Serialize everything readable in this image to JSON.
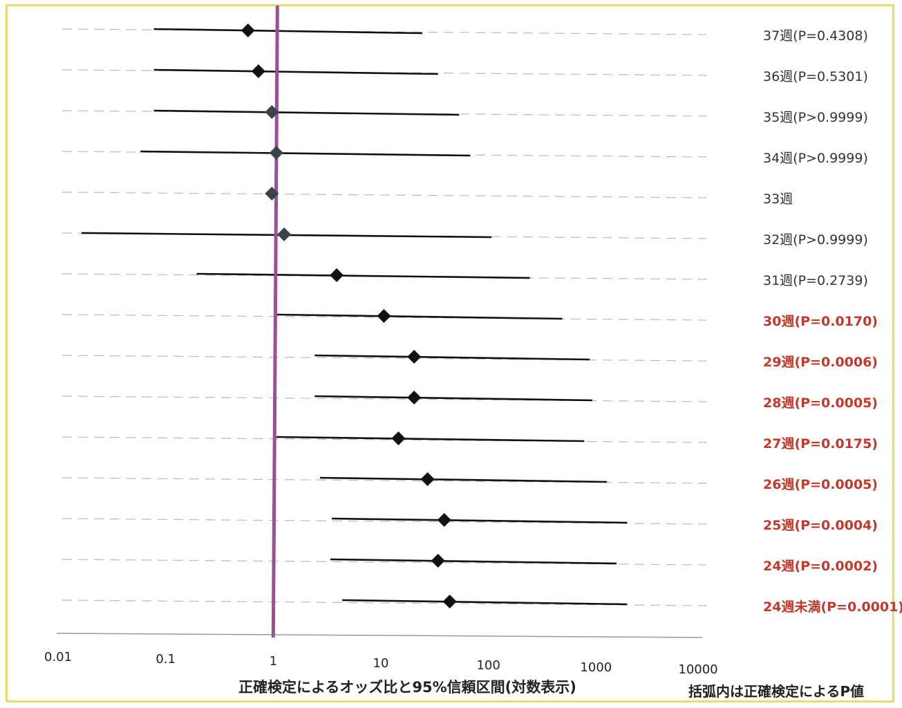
{
  "chart_data": {
    "type": "forest",
    "x_scale": "log",
    "xlim": [
      0.01,
      10000
    ],
    "x_ticks": [
      "0.01",
      "0.1",
      "1",
      "10",
      "100",
      "1000",
      "10000"
    ],
    "reference_line": 1,
    "xlabel": "正確検定によるオッズ比と95%信頼区間(対数表示)",
    "note": "括弧内は正確検定によるP値",
    "colors": {
      "reference_line": "#9b4f96",
      "significant": "#c0392b",
      "normal": "#333333",
      "frame": "#e8dc6a"
    },
    "rows": [
      {
        "label": "37週(P=0.4308)",
        "or": 0.6,
        "lower": 0.08,
        "upper": 25,
        "significant": false
      },
      {
        "label": "36週(P=0.5301)",
        "or": 0.75,
        "lower": 0.08,
        "upper": 35,
        "significant": false
      },
      {
        "label": "35週(P>0.9999)",
        "or": 1.0,
        "lower": 0.08,
        "upper": 55,
        "significant": false
      },
      {
        "label": "34週(P>0.9999)",
        "or": 1.1,
        "lower": 0.06,
        "upper": 70,
        "significant": false
      },
      {
        "label": "33週",
        "or": 1.0,
        "lower": null,
        "upper": null,
        "significant": false
      },
      {
        "label": "32週(P>0.9999)",
        "or": 1.3,
        "lower": 0.017,
        "upper": 110,
        "significant": false
      },
      {
        "label": "31週(P=0.2739)",
        "or": 4.0,
        "lower": 0.2,
        "upper": 250,
        "significant": false
      },
      {
        "label": "30週(P=0.0170)",
        "or": 11,
        "lower": 1.1,
        "upper": 500,
        "significant": true
      },
      {
        "label": "29週(P=0.0006)",
        "or": 21,
        "lower": 2.5,
        "upper": 900,
        "significant": true
      },
      {
        "label": "28週(P=0.0005)",
        "or": 21,
        "lower": 2.5,
        "upper": 950,
        "significant": true
      },
      {
        "label": "27週(P=0.0175)",
        "or": 15,
        "lower": 1.1,
        "upper": 800,
        "significant": true
      },
      {
        "label": "26週(P=0.0005)",
        "or": 28,
        "lower": 2.8,
        "upper": 1300,
        "significant": true
      },
      {
        "label": "25週(P=0.0004)",
        "or": 40,
        "lower": 3.6,
        "upper": 2000,
        "significant": true
      },
      {
        "label": "24週(P=0.0002)",
        "or": 35,
        "lower": 3.5,
        "upper": 1600,
        "significant": true
      },
      {
        "label": "24週未満(P=0.0001)",
        "or": 45,
        "lower": 4.5,
        "upper": 2000,
        "significant": true
      }
    ]
  }
}
